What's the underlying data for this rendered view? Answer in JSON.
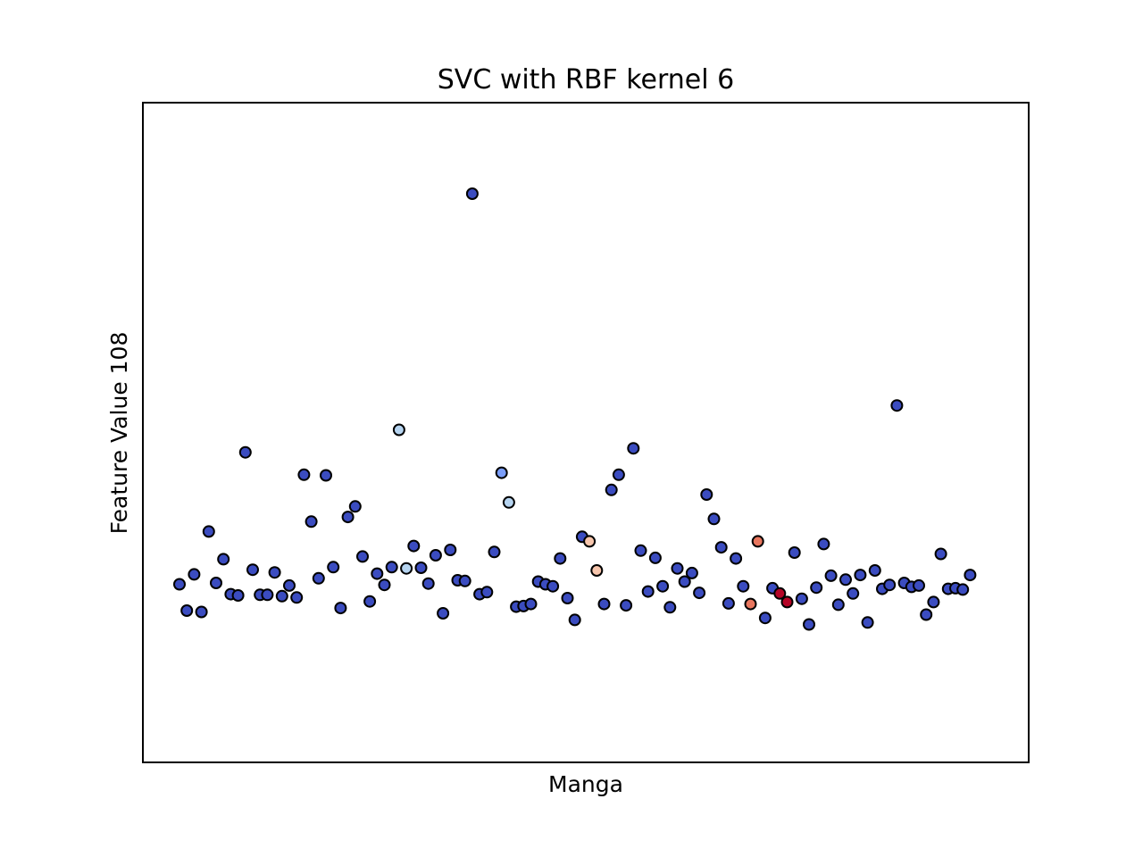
{
  "chart_data": {
    "type": "scatter",
    "title": "SVC with RBF kernel 6",
    "xlabel": "Manga",
    "ylabel": "Feature Value 108",
    "xlim": [
      0,
      121
    ],
    "ylim": [
      0,
      100
    ],
    "grid": false,
    "legend": "none",
    "x_ticks_visible": false,
    "y_ticks_visible": false,
    "marker": {
      "edge_color": "#000000",
      "colormap": "coolwarm"
    },
    "colors": {
      "blue": "#3b4cc0",
      "mid_blue": "#7a9df8",
      "light_blue": "#b6d4f0",
      "light_peach": "#f7c6ad",
      "salmon": "#e8765e",
      "dark_red": "#b40426"
    },
    "points": [
      {
        "x": 5,
        "y": 27,
        "c": "blue"
      },
      {
        "x": 6,
        "y": 23,
        "c": "blue"
      },
      {
        "x": 7,
        "y": 28.5,
        "c": "blue"
      },
      {
        "x": 8,
        "y": 22.8,
        "c": "blue"
      },
      {
        "x": 9,
        "y": 35,
        "c": "blue"
      },
      {
        "x": 10,
        "y": 27.2,
        "c": "blue"
      },
      {
        "x": 11,
        "y": 30.8,
        "c": "blue"
      },
      {
        "x": 12,
        "y": 25.5,
        "c": "blue"
      },
      {
        "x": 13,
        "y": 25.3,
        "c": "blue"
      },
      {
        "x": 14,
        "y": 47,
        "c": "blue"
      },
      {
        "x": 15,
        "y": 29.2,
        "c": "blue"
      },
      {
        "x": 16,
        "y": 25.4,
        "c": "blue"
      },
      {
        "x": 17,
        "y": 25.4,
        "c": "blue"
      },
      {
        "x": 18,
        "y": 28.8,
        "c": "blue"
      },
      {
        "x": 19,
        "y": 25.2,
        "c": "blue"
      },
      {
        "x": 20,
        "y": 26.8,
        "c": "blue"
      },
      {
        "x": 21,
        "y": 25,
        "c": "blue"
      },
      {
        "x": 22,
        "y": 43.6,
        "c": "blue"
      },
      {
        "x": 23,
        "y": 36.5,
        "c": "blue"
      },
      {
        "x": 24,
        "y": 27.9,
        "c": "blue"
      },
      {
        "x": 25,
        "y": 43.5,
        "c": "blue"
      },
      {
        "x": 26,
        "y": 29.6,
        "c": "blue"
      },
      {
        "x": 27,
        "y": 23.4,
        "c": "blue"
      },
      {
        "x": 28,
        "y": 37.2,
        "c": "blue"
      },
      {
        "x": 29,
        "y": 38.8,
        "c": "blue"
      },
      {
        "x": 30,
        "y": 31.2,
        "c": "blue"
      },
      {
        "x": 31,
        "y": 24.4,
        "c": "blue"
      },
      {
        "x": 32,
        "y": 28.6,
        "c": "blue"
      },
      {
        "x": 33,
        "y": 26.9,
        "c": "blue"
      },
      {
        "x": 34,
        "y": 29.6,
        "c": "blue"
      },
      {
        "x": 35,
        "y": 50.4,
        "c": "light_blue"
      },
      {
        "x": 36,
        "y": 29.4,
        "c": "light_blue"
      },
      {
        "x": 37,
        "y": 32.8,
        "c": "blue"
      },
      {
        "x": 38,
        "y": 29.5,
        "c": "blue"
      },
      {
        "x": 39,
        "y": 27.1,
        "c": "blue"
      },
      {
        "x": 40,
        "y": 31.4,
        "c": "blue"
      },
      {
        "x": 41,
        "y": 22.6,
        "c": "blue"
      },
      {
        "x": 42,
        "y": 32.2,
        "c": "blue"
      },
      {
        "x": 43,
        "y": 27.6,
        "c": "blue"
      },
      {
        "x": 44,
        "y": 27.5,
        "c": "blue"
      },
      {
        "x": 45,
        "y": 86.2,
        "c": "blue"
      },
      {
        "x": 46,
        "y": 25.5,
        "c": "blue"
      },
      {
        "x": 47,
        "y": 25.8,
        "c": "blue"
      },
      {
        "x": 48,
        "y": 31.9,
        "c": "blue"
      },
      {
        "x": 49,
        "y": 43.9,
        "c": "mid_blue"
      },
      {
        "x": 50,
        "y": 39.4,
        "c": "light_blue"
      },
      {
        "x": 51,
        "y": 23.6,
        "c": "blue"
      },
      {
        "x": 52,
        "y": 23.7,
        "c": "blue"
      },
      {
        "x": 53,
        "y": 24,
        "c": "blue"
      },
      {
        "x": 54,
        "y": 27.4,
        "c": "blue"
      },
      {
        "x": 55,
        "y": 27,
        "c": "blue"
      },
      {
        "x": 56,
        "y": 26.7,
        "c": "blue"
      },
      {
        "x": 57,
        "y": 30.9,
        "c": "blue"
      },
      {
        "x": 58,
        "y": 24.9,
        "c": "blue"
      },
      {
        "x": 59,
        "y": 21.6,
        "c": "blue"
      },
      {
        "x": 60,
        "y": 34.2,
        "c": "blue"
      },
      {
        "x": 61,
        "y": 33.5,
        "c": "light_peach"
      },
      {
        "x": 62,
        "y": 29.1,
        "c": "light_peach"
      },
      {
        "x": 63,
        "y": 24,
        "c": "blue"
      },
      {
        "x": 64,
        "y": 41.3,
        "c": "blue"
      },
      {
        "x": 65,
        "y": 43.6,
        "c": "blue"
      },
      {
        "x": 66,
        "y": 23.8,
        "c": "blue"
      },
      {
        "x": 67,
        "y": 47.6,
        "c": "blue"
      },
      {
        "x": 68,
        "y": 32.1,
        "c": "blue"
      },
      {
        "x": 69,
        "y": 25.9,
        "c": "blue"
      },
      {
        "x": 70,
        "y": 31,
        "c": "blue"
      },
      {
        "x": 71,
        "y": 26.7,
        "c": "blue"
      },
      {
        "x": 72,
        "y": 23.5,
        "c": "blue"
      },
      {
        "x": 73,
        "y": 29.4,
        "c": "blue"
      },
      {
        "x": 74,
        "y": 27.4,
        "c": "blue"
      },
      {
        "x": 75,
        "y": 28.7,
        "c": "blue"
      },
      {
        "x": 76,
        "y": 25.7,
        "c": "blue"
      },
      {
        "x": 77,
        "y": 40.6,
        "c": "blue"
      },
      {
        "x": 78,
        "y": 36.9,
        "c": "blue"
      },
      {
        "x": 79,
        "y": 32.6,
        "c": "blue"
      },
      {
        "x": 80,
        "y": 24.1,
        "c": "blue"
      },
      {
        "x": 81,
        "y": 30.9,
        "c": "blue"
      },
      {
        "x": 82,
        "y": 26.7,
        "c": "blue"
      },
      {
        "x": 83,
        "y": 24,
        "c": "salmon"
      },
      {
        "x": 84,
        "y": 33.5,
        "c": "salmon"
      },
      {
        "x": 85,
        "y": 21.9,
        "c": "blue"
      },
      {
        "x": 86,
        "y": 26.4,
        "c": "blue"
      },
      {
        "x": 87,
        "y": 25.6,
        "c": "dark_red"
      },
      {
        "x": 88,
        "y": 24.3,
        "c": "dark_red"
      },
      {
        "x": 89,
        "y": 31.8,
        "c": "blue"
      },
      {
        "x": 90,
        "y": 24.8,
        "c": "blue"
      },
      {
        "x": 91,
        "y": 20.9,
        "c": "blue"
      },
      {
        "x": 92,
        "y": 26.5,
        "c": "blue"
      },
      {
        "x": 93,
        "y": 33.1,
        "c": "blue"
      },
      {
        "x": 94,
        "y": 28.3,
        "c": "blue"
      },
      {
        "x": 95,
        "y": 23.9,
        "c": "blue"
      },
      {
        "x": 96,
        "y": 27.7,
        "c": "blue"
      },
      {
        "x": 97,
        "y": 25.6,
        "c": "blue"
      },
      {
        "x": 98,
        "y": 28.4,
        "c": "blue"
      },
      {
        "x": 99,
        "y": 21.2,
        "c": "blue"
      },
      {
        "x": 100,
        "y": 29.1,
        "c": "blue"
      },
      {
        "x": 101,
        "y": 26.3,
        "c": "blue"
      },
      {
        "x": 102,
        "y": 26.9,
        "c": "blue"
      },
      {
        "x": 103,
        "y": 54.1,
        "c": "blue"
      },
      {
        "x": 104,
        "y": 27.2,
        "c": "blue"
      },
      {
        "x": 105,
        "y": 26.6,
        "c": "blue"
      },
      {
        "x": 106,
        "y": 26.8,
        "c": "blue"
      },
      {
        "x": 107,
        "y": 22.4,
        "c": "blue"
      },
      {
        "x": 108,
        "y": 24.3,
        "c": "blue"
      },
      {
        "x": 109,
        "y": 31.6,
        "c": "blue"
      },
      {
        "x": 110,
        "y": 26.3,
        "c": "blue"
      },
      {
        "x": 111,
        "y": 26.4,
        "c": "blue"
      },
      {
        "x": 112,
        "y": 26.2,
        "c": "blue"
      },
      {
        "x": 113,
        "y": 28.4,
        "c": "blue"
      }
    ]
  }
}
